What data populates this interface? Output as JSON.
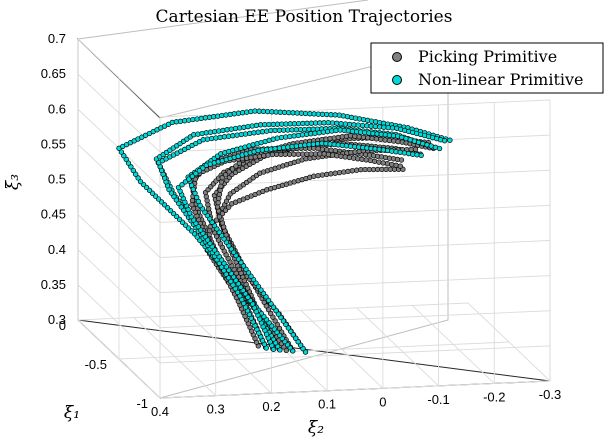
{
  "chart_data": {
    "type": "scatter",
    "title": "Cartesian EE Position Trajectories",
    "xlabel": "ξ₁",
    "ylabel": "ξ₂",
    "zlabel": "ξ₃",
    "x_ticks": [
      "0",
      "-0.5",
      "-1"
    ],
    "y_ticks": [
      "0.4",
      "0.3",
      "0.2",
      "0.1",
      "0",
      "-0.1",
      "-0.2",
      "-0.3"
    ],
    "z_ticks": [
      "0.3",
      "0.35",
      "0.4",
      "0.45",
      "0.5",
      "0.55",
      "0.6",
      "0.65",
      "0.7"
    ],
    "xlim": [
      -1,
      0
    ],
    "ylim": [
      -0.3,
      0.4
    ],
    "zlim": [
      0.3,
      0.7
    ],
    "grid": true,
    "legend_position": "top-right",
    "colors": {
      "picking": "#808080",
      "nonlinear": "#00d8d8",
      "edge": "#000000"
    },
    "series": [
      {
        "name": "Picking Primitive",
        "color_key": "picking",
        "trajectories": [
          [
            [
              -0.55,
              0.12,
              0.31
            ],
            [
              -0.5,
              0.15,
              0.36
            ],
            [
              -0.45,
              0.19,
              0.42
            ],
            [
              -0.42,
              0.22,
              0.47
            ],
            [
              -0.4,
              0.23,
              0.52
            ],
            [
              -0.42,
              0.2,
              0.55
            ],
            [
              -0.45,
              0.12,
              0.58
            ],
            [
              -0.47,
              0.0,
              0.59
            ],
            [
              -0.48,
              -0.1,
              0.58
            ],
            [
              -0.49,
              -0.15,
              0.57
            ]
          ],
          [
            [
              -0.58,
              0.1,
              0.31
            ],
            [
              -0.53,
              0.14,
              0.37
            ],
            [
              -0.49,
              0.18,
              0.43
            ],
            [
              -0.46,
              0.21,
              0.48
            ],
            [
              -0.44,
              0.22,
              0.52
            ],
            [
              -0.45,
              0.19,
              0.55
            ],
            [
              -0.48,
              0.13,
              0.58
            ],
            [
              -0.5,
              0.03,
              0.6
            ],
            [
              -0.51,
              -0.08,
              0.6
            ],
            [
              -0.52,
              -0.16,
              0.59
            ]
          ],
          [
            [
              -0.52,
              0.14,
              0.31
            ],
            [
              -0.47,
              0.17,
              0.37
            ],
            [
              -0.42,
              0.21,
              0.43
            ],
            [
              -0.38,
              0.24,
              0.49
            ],
            [
              -0.36,
              0.25,
              0.53
            ],
            [
              -0.38,
              0.22,
              0.56
            ],
            [
              -0.41,
              0.15,
              0.58
            ],
            [
              -0.43,
              0.04,
              0.58
            ],
            [
              -0.45,
              -0.05,
              0.57
            ],
            [
              -0.46,
              -0.12,
              0.56
            ]
          ],
          [
            [
              -0.6,
              0.08,
              0.31
            ],
            [
              -0.55,
              0.12,
              0.36
            ],
            [
              -0.5,
              0.17,
              0.41
            ],
            [
              -0.46,
              0.2,
              0.46
            ],
            [
              -0.43,
              0.21,
              0.49
            ],
            [
              -0.43,
              0.19,
              0.52
            ],
            [
              -0.45,
              0.14,
              0.55
            ],
            [
              -0.47,
              0.06,
              0.57
            ],
            [
              -0.49,
              -0.04,
              0.58
            ],
            [
              -0.5,
              -0.14,
              0.58
            ]
          ],
          [
            [
              -0.54,
              0.13,
              0.31
            ],
            [
              -0.48,
              0.16,
              0.38
            ],
            [
              -0.44,
              0.19,
              0.44
            ],
            [
              -0.41,
              0.21,
              0.5
            ],
            [
              -0.4,
              0.2,
              0.54
            ],
            [
              -0.42,
              0.16,
              0.57
            ],
            [
              -0.45,
              0.08,
              0.59
            ],
            [
              -0.47,
              -0.02,
              0.6
            ],
            [
              -0.49,
              -0.11,
              0.59
            ],
            [
              -0.51,
              -0.17,
              0.58
            ]
          ],
          [
            [
              -0.57,
              0.11,
              0.31
            ],
            [
              -0.52,
              0.15,
              0.36
            ],
            [
              -0.47,
              0.2,
              0.4
            ],
            [
              -0.42,
              0.23,
              0.44
            ],
            [
              -0.39,
              0.22,
              0.47
            ],
            [
              -0.38,
              0.18,
              0.5
            ],
            [
              -0.4,
              0.12,
              0.52
            ],
            [
              -0.43,
              0.04,
              0.54
            ],
            [
              -0.46,
              -0.04,
              0.55
            ],
            [
              -0.48,
              -0.12,
              0.55
            ]
          ],
          [
            [
              -0.5,
              0.15,
              0.31
            ],
            [
              -0.46,
              0.18,
              0.37
            ],
            [
              -0.41,
              0.22,
              0.44
            ],
            [
              -0.37,
              0.25,
              0.5
            ],
            [
              -0.35,
              0.24,
              0.54
            ],
            [
              -0.37,
              0.19,
              0.56
            ],
            [
              -0.4,
              0.11,
              0.57
            ],
            [
              -0.42,
              0.02,
              0.57
            ],
            [
              -0.44,
              -0.06,
              0.56
            ],
            [
              -0.45,
              -0.12,
              0.55
            ]
          ]
        ]
      },
      {
        "name": "Non-linear Primitive",
        "color_key": "nonlinear",
        "trajectories": [
          [
            [
              -0.56,
              0.12,
              0.31
            ],
            [
              -0.5,
              0.17,
              0.38
            ],
            [
              -0.47,
              0.26,
              0.47
            ],
            [
              -0.49,
              0.36,
              0.55
            ],
            [
              -0.5,
              0.4,
              0.6
            ],
            [
              -0.47,
              0.3,
              0.63
            ],
            [
              -0.46,
              0.15,
              0.64
            ],
            [
              -0.47,
              0.0,
              0.63
            ],
            [
              -0.49,
              -0.12,
              0.61
            ],
            [
              -0.51,
              -0.2,
              0.59
            ]
          ],
          [
            [
              -0.58,
              0.1,
              0.31
            ],
            [
              -0.54,
              0.16,
              0.37
            ],
            [
              -0.5,
              0.23,
              0.45
            ],
            [
              -0.49,
              0.3,
              0.53
            ],
            [
              -0.48,
              0.33,
              0.58
            ],
            [
              -0.46,
              0.26,
              0.61
            ],
            [
              -0.46,
              0.14,
              0.62
            ],
            [
              -0.47,
              0.02,
              0.62
            ],
            [
              -0.49,
              -0.1,
              0.61
            ],
            [
              -0.51,
              -0.19,
              0.59
            ]
          ],
          [
            [
              -0.53,
              0.14,
              0.31
            ],
            [
              -0.48,
              0.18,
              0.38
            ],
            [
              -0.44,
              0.24,
              0.46
            ],
            [
              -0.43,
              0.3,
              0.53
            ],
            [
              -0.44,
              0.32,
              0.57
            ],
            [
              -0.44,
              0.24,
              0.6
            ],
            [
              -0.45,
              0.12,
              0.61
            ],
            [
              -0.46,
              0.0,
              0.61
            ],
            [
              -0.48,
              -0.1,
              0.6
            ],
            [
              -0.5,
              -0.17,
              0.58
            ]
          ],
          [
            [
              -0.6,
              0.08,
              0.31
            ],
            [
              -0.55,
              0.13,
              0.37
            ],
            [
              -0.5,
              0.19,
              0.44
            ],
            [
              -0.47,
              0.25,
              0.51
            ],
            [
              -0.46,
              0.27,
              0.55
            ],
            [
              -0.45,
              0.21,
              0.58
            ],
            [
              -0.46,
              0.11,
              0.6
            ],
            [
              -0.48,
              0.0,
              0.61
            ],
            [
              -0.5,
              -0.1,
              0.6
            ],
            [
              -0.52,
              -0.18,
              0.58
            ]
          ],
          [
            [
              -0.55,
              0.13,
              0.31
            ],
            [
              -0.5,
              0.16,
              0.37
            ],
            [
              -0.46,
              0.21,
              0.43
            ],
            [
              -0.43,
              0.26,
              0.49
            ],
            [
              -0.41,
              0.28,
              0.53
            ],
            [
              -0.41,
              0.23,
              0.56
            ],
            [
              -0.43,
              0.14,
              0.58
            ],
            [
              -0.46,
              0.03,
              0.59
            ],
            [
              -0.48,
              -0.07,
              0.58
            ],
            [
              -0.5,
              -0.15,
              0.57
            ]
          ]
        ]
      }
    ]
  }
}
